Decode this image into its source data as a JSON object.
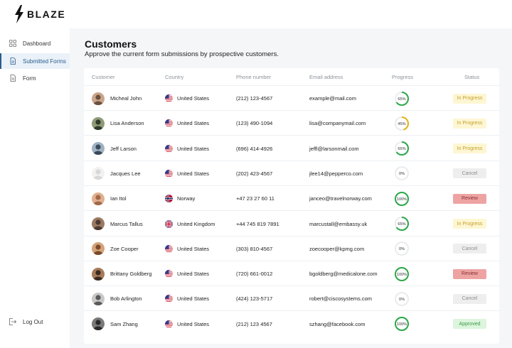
{
  "app": {
    "name": "BLAZE"
  },
  "sidebar": {
    "items": [
      {
        "key": "dashboard",
        "label": "Dashboard",
        "icon": "grid-icon",
        "active": false
      },
      {
        "key": "submitted",
        "label": "Submitted Forms",
        "icon": "document-icon",
        "active": true
      },
      {
        "key": "form",
        "label": "Form",
        "icon": "document-icon",
        "active": false
      }
    ],
    "logout_label": "Log Out"
  },
  "page": {
    "title": "Customers",
    "subtitle": "Approve the current form submissions by prospective customers."
  },
  "table": {
    "headers": {
      "customer": "Customer",
      "country": "Country",
      "phone": "Phone number",
      "email": "Email address",
      "progress": "Progress",
      "status": "Status"
    },
    "rows": [
      {
        "name": "Micheal John",
        "country": "United States",
        "flag": "us",
        "phone": "(212) 123-4567",
        "email": "example@mail.com",
        "progress": 65,
        "progress_label": "65%",
        "status": "In Progress",
        "status_type": "progress"
      },
      {
        "name": "Lisa Anderson",
        "country": "United States",
        "flag": "us",
        "phone": "(123) 490-1094",
        "email": "lisa@companymail.com",
        "progress": 45,
        "progress_label": "45%",
        "status": "In Progress",
        "status_type": "progress"
      },
      {
        "name": "Jeff Larson",
        "country": "United States",
        "flag": "us",
        "phone": "(696) 414-4926",
        "email": "jeffl@larsonmail.com",
        "progress": 65,
        "progress_label": "65%",
        "status": "In Progress",
        "status_type": "progress"
      },
      {
        "name": "Jacques Lee",
        "country": "United States",
        "flag": "us",
        "phone": "(202) 423-4567",
        "email": "jlee14@pepperco.com",
        "progress": 0,
        "progress_label": "0%",
        "status": "Cancel",
        "status_type": "cancel"
      },
      {
        "name": "Ian Itol",
        "country": "Norway",
        "flag": "no",
        "phone": "+47  23 27 60 11",
        "email": "janceo@travelnorway.com",
        "progress": 100,
        "progress_label": "100%",
        "status": "Review",
        "status_type": "review"
      },
      {
        "name": "Marcus Tallus",
        "country": "United Kingdom",
        "flag": "uk",
        "phone": "+44 745 819 7891",
        "email": "marcustall@embassy.uk",
        "progress": 65,
        "progress_label": "65%",
        "status": "In Progress",
        "status_type": "progress"
      },
      {
        "name": "Zoe Cooper",
        "country": "United States",
        "flag": "us",
        "phone": "(303) 810-4567",
        "email": "zoecooper@kpmg.com",
        "progress": 0,
        "progress_label": "0%",
        "status": "Cancel",
        "status_type": "cancel"
      },
      {
        "name": "Brittany Goldberg",
        "country": "United States",
        "flag": "us",
        "phone": "(720) 661-0012",
        "email": "bgoldberg@medicalone.com",
        "progress": 100,
        "progress_label": "100%",
        "status": "Review",
        "status_type": "review"
      },
      {
        "name": "Bob Arlington",
        "country": "United States",
        "flag": "us",
        "phone": "(424) 123-5717",
        "email": "robert@ciscosystems.com",
        "progress": 0,
        "progress_label": "0%",
        "status": "Cancel",
        "status_type": "cancel"
      },
      {
        "name": "Sam Zhang",
        "country": "United States",
        "flag": "us",
        "phone": "(212) 123 4567",
        "email": "szhang@facebook.com",
        "progress": 100,
        "progress_label": "100%",
        "status": "Approved",
        "status_type": "approved"
      }
    ]
  },
  "colors": {
    "accent": "#2a5d8f",
    "ring_green": "#2ca84a",
    "ring_yellow": "#e2b417",
    "ring_track": "#e9ecef",
    "status": {
      "progress": {
        "bg": "#fdf6d3",
        "fg": "#c7a12c"
      },
      "cancel": {
        "bg": "#eeeeee",
        "fg": "#8d8d8d"
      },
      "review": {
        "bg": "#eea3a3",
        "fg": "#8a2f2f"
      },
      "approved": {
        "bg": "#dcf5dc",
        "fg": "#3d9a48"
      }
    }
  }
}
